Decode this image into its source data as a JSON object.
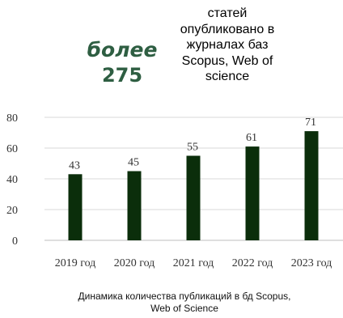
{
  "headline": {
    "prefix": "более",
    "value": "275",
    "description": "статей опубликовано в журналах баз Scopus, Web of science"
  },
  "caption": "Динамика количества публикаций в бд Scopus, Web of Science",
  "colors": {
    "bar": "#0b2e0b",
    "headline_accent": "#2e5e42",
    "axis": "#bfbfbf",
    "gridline": "#d9d9d9"
  },
  "chart_data": {
    "type": "bar",
    "categories": [
      "2019 год",
      "2020 год",
      "2021 год",
      "2022 год",
      "2023 год"
    ],
    "values": [
      43,
      45,
      55,
      61,
      71
    ],
    "value_labels": [
      "43",
      "45",
      "55",
      "61",
      "71"
    ],
    "title": "",
    "xlabel": "",
    "ylabel": "",
    "ylim": [
      0,
      80
    ],
    "y_ticks": [
      0,
      20,
      40,
      60,
      80
    ],
    "grid": true,
    "legend": "none"
  }
}
